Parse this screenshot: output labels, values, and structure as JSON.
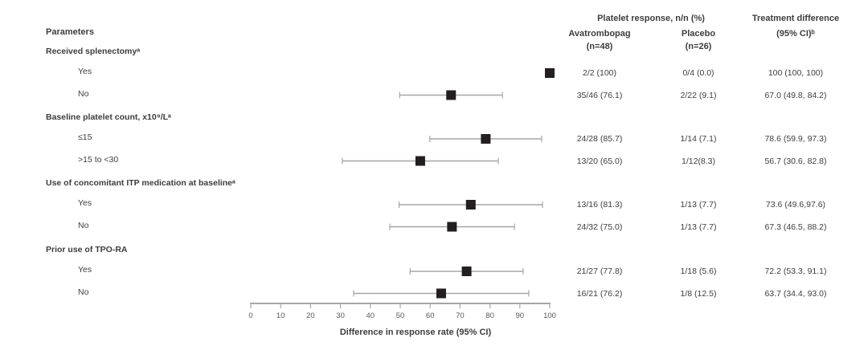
{
  "columns": {
    "parameters_label": "Parameters",
    "response_group_header": "Platelet response, n/n (%)",
    "avatrombopag": {
      "name": "Avatrombopag",
      "n_label": "(n=48)"
    },
    "placebo": {
      "name": "Placebo",
      "n_label": "(n=26)"
    },
    "difference": {
      "line1": "Treatment difference",
      "line2": "(95% CI)ᵇ"
    }
  },
  "axis": {
    "label": "Difference in response rate (95% CI)",
    "min": 0,
    "max": 100,
    "ticks": [
      0,
      10,
      20,
      30,
      40,
      50,
      60,
      70,
      80,
      90,
      100
    ]
  },
  "colors": {
    "text": "#3d3d3d",
    "tick_text": "#595959",
    "marker": "#231f20",
    "ci_line": "#a6a6a6",
    "axis_line": "#a6a6a6",
    "background": "#ffffff"
  },
  "chart_data": {
    "type": "scatter",
    "subtype": "forest-plot",
    "title": "",
    "xlabel": "Difference in response rate (95% CI)",
    "xlim": [
      0,
      100
    ],
    "xticks": [
      0,
      10,
      20,
      30,
      40,
      50,
      60,
      70,
      80,
      90,
      100
    ],
    "grid": false,
    "legend": "none",
    "value_columns": [
      "Avatrombopag (n=48)",
      "Placebo (n=26)",
      "Treatment difference (95% CI)"
    ],
    "groups": [
      {
        "label": "Received splenectomyᵃ",
        "rows": [
          {
            "label": "Yes",
            "estimate": 100,
            "ci_low": 100,
            "ci_high": 100,
            "avatrombopag": "2/2 (100)",
            "placebo": "0/4 (0.0)",
            "difference": "100 (100, 100)"
          },
          {
            "label": "No",
            "estimate": 67.0,
            "ci_low": 49.8,
            "ci_high": 84.2,
            "avatrombopag": "35/46 (76.1)",
            "placebo": "2/22 (9.1)",
            "difference": "67.0 (49.8, 84.2)"
          }
        ]
      },
      {
        "label": "Baseline platelet count, x10⁹/Lᵃ",
        "rows": [
          {
            "label": "≤15",
            "estimate": 78.6,
            "ci_low": 59.9,
            "ci_high": 97.3,
            "avatrombopag": "24/28 (85.7)",
            "placebo": "1/14 (7.1)",
            "difference": "78.6 (59.9, 97.3)"
          },
          {
            "label": ">15 to <30",
            "estimate": 56.7,
            "ci_low": 30.6,
            "ci_high": 82.8,
            "avatrombopag": "13/20 (65.0)",
            "placebo": "1/12(8.3)",
            "difference": "56.7 (30.6, 82.8)"
          }
        ]
      },
      {
        "label": "Use of concomitant ITP medication at baselineᵃ",
        "rows": [
          {
            "label": "Yes",
            "estimate": 73.6,
            "ci_low": 49.6,
            "ci_high": 97.6,
            "avatrombopag": "13/16 (81.3)",
            "placebo": "1/13 (7.7)",
            "difference": "73.6 (49.6,97.6)"
          },
          {
            "label": "No",
            "estimate": 67.3,
            "ci_low": 46.5,
            "ci_high": 88.2,
            "avatrombopag": "24/32 (75.0)",
            "placebo": "1/13 (7.7)",
            "difference": "67.3 (46.5, 88.2)"
          }
        ]
      },
      {
        "label": "Prior use of TPO-RA",
        "rows": [
          {
            "label": "Yes",
            "estimate": 72.2,
            "ci_low": 53.3,
            "ci_high": 91.1,
            "avatrombopag": "21/27 (77.8)",
            "placebo": "1/18 (5.6)",
            "difference": "72.2 (53.3, 91.1)"
          },
          {
            "label": "No",
            "estimate": 63.7,
            "ci_low": 34.4,
            "ci_high": 93.0,
            "avatrombopag": "16/21 (76.2)",
            "placebo": "1/8 (12.5)",
            "difference": "63.7 (34.4, 93.0)"
          }
        ]
      }
    ]
  }
}
